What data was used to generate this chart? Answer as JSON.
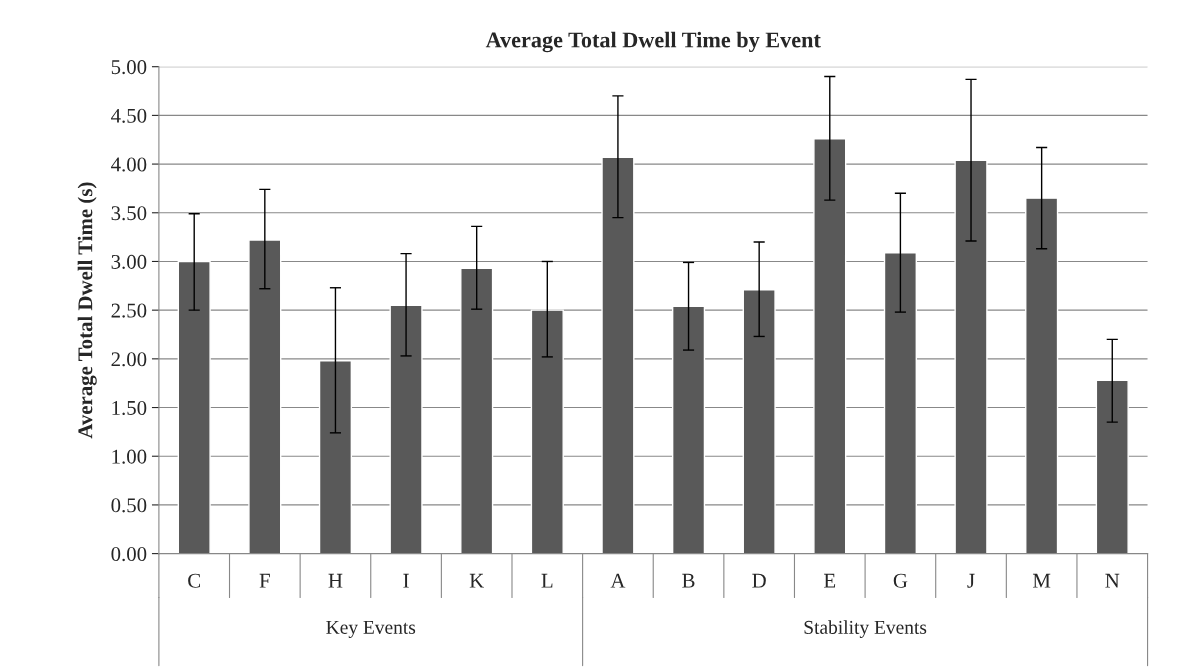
{
  "chart_data": {
    "type": "bar",
    "title": "Average Total Dwell Time by Event",
    "ylabel": "Average Total Dwell Time (s)",
    "categories": [
      "C",
      "F",
      "H",
      "I",
      "K",
      "L",
      "A",
      "B",
      "D",
      "E",
      "G",
      "J",
      "M",
      "N"
    ],
    "values": [
      3.0,
      3.22,
      1.98,
      2.55,
      2.93,
      2.5,
      4.07,
      2.54,
      2.71,
      4.26,
      3.09,
      4.04,
      3.65,
      1.78
    ],
    "errors": [
      [
        2.5,
        3.49
      ],
      [
        2.72,
        3.74
      ],
      [
        1.24,
        2.73
      ],
      [
        2.03,
        3.08
      ],
      [
        2.51,
        3.36
      ],
      [
        2.02,
        3.0
      ],
      [
        3.45,
        4.7
      ],
      [
        2.09,
        2.99
      ],
      [
        2.23,
        3.2
      ],
      [
        3.63,
        4.9
      ],
      [
        2.48,
        3.7
      ],
      [
        3.21,
        4.87
      ],
      [
        3.13,
        4.17
      ],
      [
        1.35,
        2.2
      ]
    ],
    "color": "#595959",
    "ylim": [
      0,
      5
    ],
    "yticks": [
      {
        "value": 0,
        "label": "0.00"
      },
      {
        "value": 0.5,
        "label": "0.50"
      },
      {
        "value": 1,
        "label": "1.00"
      },
      {
        "value": 1.5,
        "label": "1.50"
      },
      {
        "value": 2,
        "label": "2.00"
      },
      {
        "value": 2.5,
        "label": "2.50"
      },
      {
        "value": 3,
        "label": "3.00"
      },
      {
        "value": 3.5,
        "label": "3.50"
      },
      {
        "value": 4,
        "label": "4.00"
      },
      {
        "value": 4.5,
        "label": "4.50"
      },
      {
        "value": 5,
        "label": "5.00"
      }
    ],
    "grid": "y",
    "annotations": [
      "Key Events",
      "Stability Events"
    ]
  }
}
